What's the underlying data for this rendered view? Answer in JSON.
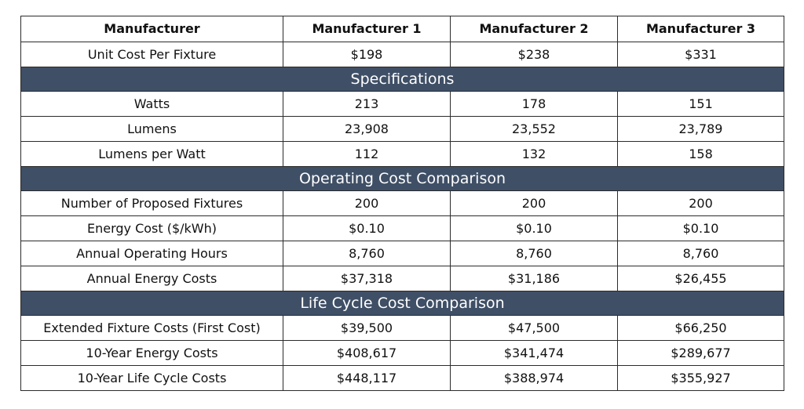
{
  "header": {
    "label": "Manufacturer",
    "columns": [
      "Manufacturer 1",
      "Manufacturer 2",
      "Manufacturer 3"
    ]
  },
  "unit_cost": {
    "label": "Unit Cost Per Fixture",
    "values": [
      "$198",
      "$238",
      "$331"
    ]
  },
  "sections": [
    {
      "title": "Specifications",
      "rows": [
        {
          "label": "Watts",
          "values": [
            "213",
            "178",
            "151"
          ]
        },
        {
          "label": "Lumens",
          "values": [
            "23,908",
            "23,552",
            "23,789"
          ]
        },
        {
          "label": "Lumens per Watt",
          "values": [
            "112",
            "132",
            "158"
          ]
        }
      ]
    },
    {
      "title": "Operating Cost Comparison",
      "rows": [
        {
          "label": "Number of Proposed Fixtures",
          "values": [
            "200",
            "200",
            "200"
          ]
        },
        {
          "label": "Energy Cost ($/kWh)",
          "values": [
            "$0.10",
            "$0.10",
            "$0.10"
          ]
        },
        {
          "label": "Annual Operating Hours",
          "values": [
            "8,760",
            "8,760",
            "8,760"
          ]
        },
        {
          "label": "Annual Energy Costs",
          "values": [
            "$37,318",
            "$31,186",
            "$26,455"
          ]
        }
      ]
    },
    {
      "title": "Life Cycle Cost Comparison",
      "rows": [
        {
          "label": "Extended Fixture Costs (First Cost)",
          "values": [
            "$39,500",
            "$47,500",
            "$66,250"
          ]
        },
        {
          "label": "10-Year Energy Costs",
          "values": [
            "$408,617",
            "$341,474",
            "$289,677"
          ]
        },
        {
          "label": "10-Year Life Cycle Costs",
          "values": [
            "$448,117",
            "$388,974",
            "$355,927"
          ]
        }
      ]
    }
  ],
  "colors": {
    "section_header_bg": "#3f4f66",
    "section_header_text": "#ffffff",
    "border": "#2b2b2b"
  }
}
